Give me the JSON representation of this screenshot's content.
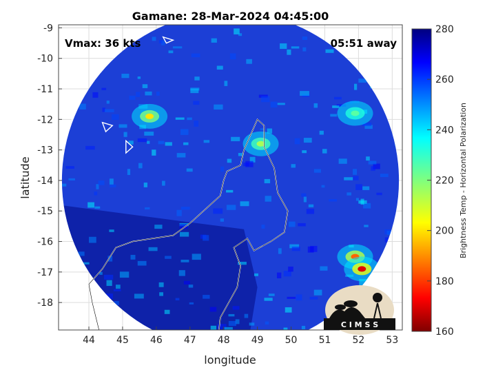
{
  "title": "Gamane: 28-Mar-2024 04:45:00",
  "vmax_label": "Vmax: 36 kts",
  "time_away": "05:51 away",
  "xlabel": "longitude",
  "ylabel": "latitude",
  "colorbar_label": "Brightness Temp - Horizontal Polarization",
  "logo_text": "C I M S S",
  "chart_data": {
    "type": "heatmap",
    "xlabel": "longitude",
    "ylabel": "latitude",
    "xlim": [
      43.1,
      53.3
    ],
    "ylim": [
      -18.9,
      -8.9
    ],
    "xticks": [
      44,
      45,
      46,
      47,
      48,
      49,
      50,
      51,
      52,
      53
    ],
    "yticks": [
      -9,
      -10,
      -11,
      -12,
      -13,
      -14,
      -15,
      -16,
      -17,
      -18
    ],
    "xtick_labels": [
      "44",
      "45",
      "46",
      "47",
      "48",
      "49",
      "50",
      "51",
      "52",
      "53"
    ],
    "ytick_labels": [
      "-9",
      "-10",
      "-11",
      "-12",
      "-13",
      "-14",
      "-15",
      "-16",
      "-17",
      "-18"
    ],
    "grid": true,
    "colorbar": {
      "min": 160,
      "max": 280,
      "ticks": [
        160,
        180,
        200,
        220,
        240,
        260,
        280
      ],
      "tick_labels": [
        "160",
        "180",
        "200",
        "220",
        "240",
        "260",
        "280"
      ],
      "colormap": "jet"
    },
    "swath": {
      "center_lon": 48.2,
      "center_lat": -14.0,
      "radius_deg": 5.0
    },
    "features": [
      {
        "name": "convection-north-center",
        "lon": 49.1,
        "lat": -12.8,
        "value": 215
      },
      {
        "name": "convection-nw",
        "lon": 45.8,
        "lat": -11.9,
        "value": 200
      },
      {
        "name": "convection-ne",
        "lon": 51.9,
        "lat": -11.8,
        "value": 225
      },
      {
        "name": "convection-se",
        "lon": 51.9,
        "lat": -16.5,
        "value": 185
      },
      {
        "name": "convection-se-core",
        "lon": 52.1,
        "lat": -16.9,
        "value": 170
      }
    ]
  },
  "colors": {
    "background_field": "#1c3fd6",
    "cold_region": "#0a1a9a"
  }
}
